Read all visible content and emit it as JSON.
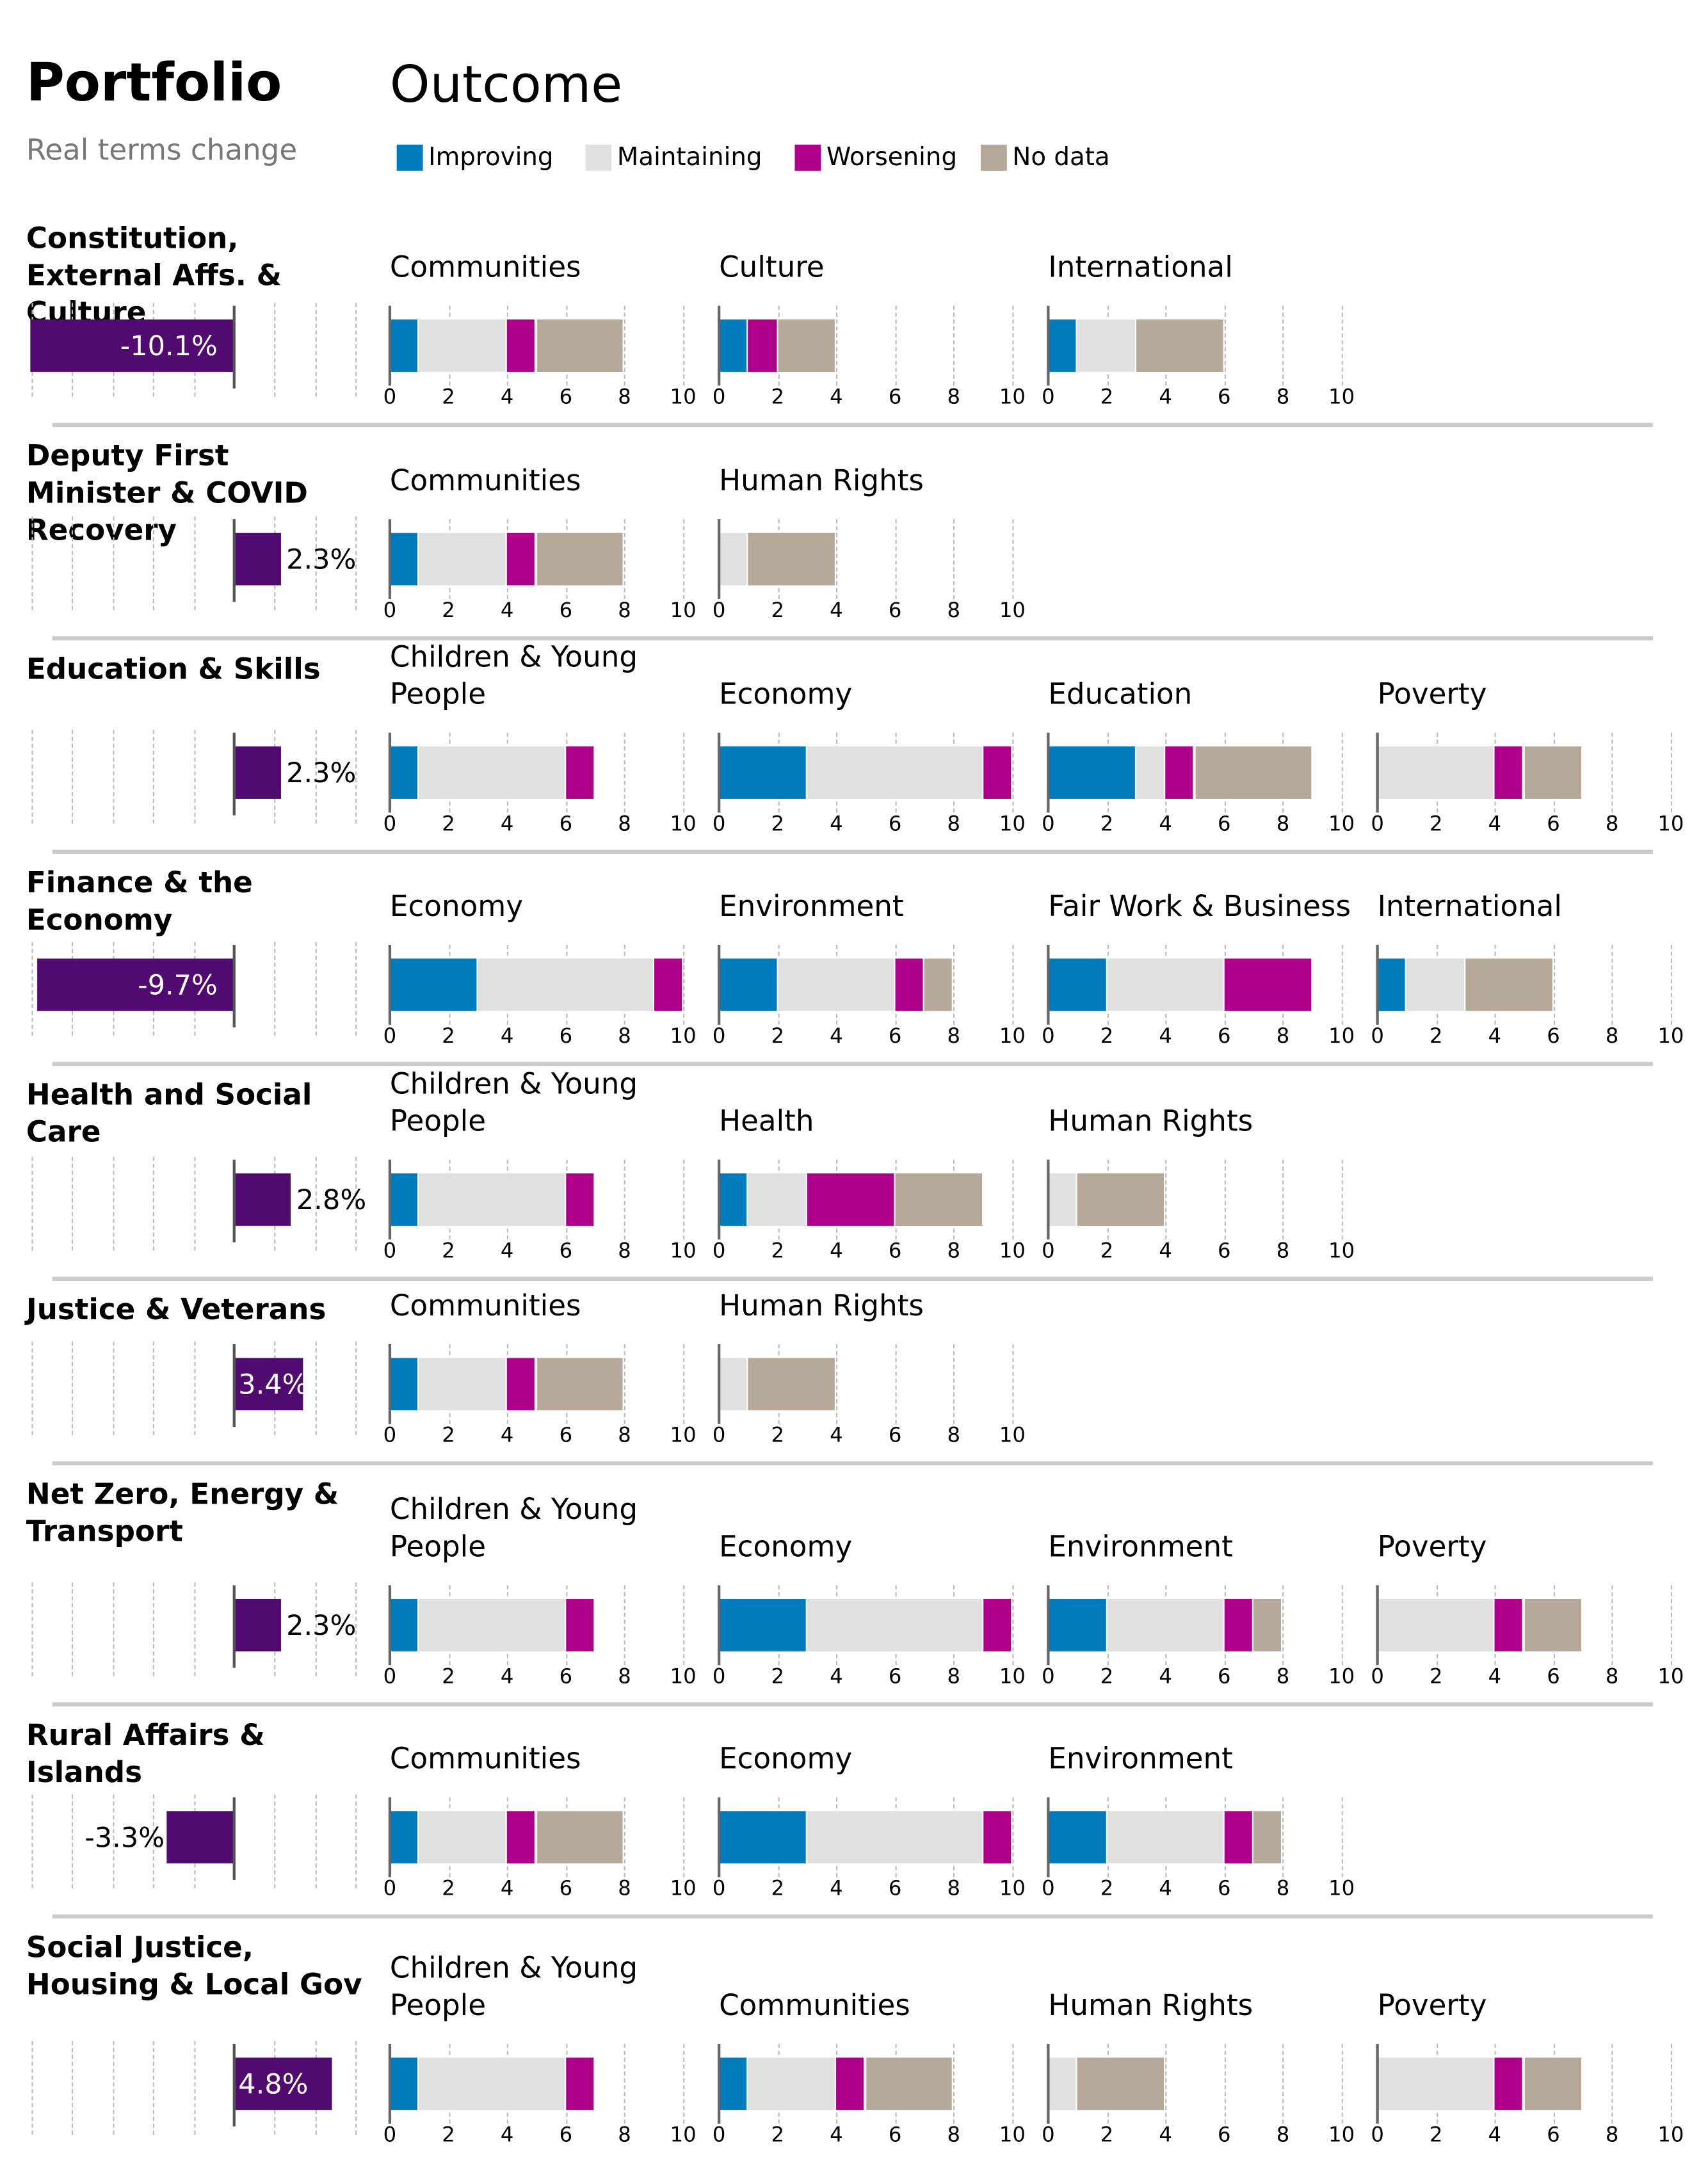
{
  "header": {
    "title": "Portfolio",
    "subtitle": "Real terms change",
    "outcome_title": "Outcome"
  },
  "legend": [
    {
      "label": "Improving",
      "color": "#007bbb"
    },
    {
      "label": "Maintaining",
      "color": "#e0e0e0"
    },
    {
      "label": "Worsening",
      "color": "#af008c"
    },
    {
      "label": "No data",
      "color": "#b6a999"
    }
  ],
  "chart_data": {
    "type": "bar",
    "stacked": true,
    "x_ticks": [
      "0",
      "2",
      "4",
      "6",
      "8",
      "10"
    ],
    "xlim": [
      0,
      10
    ],
    "portfolio_bar_color": "#500a70",
    "grid": true,
    "portfolios": [
      {
        "name": "Constitution, External Affs. & Culture",
        "change": -10.1,
        "change_label": "-10.1%",
        "outcomes": [
          {
            "name": "Communities",
            "values": [
              1,
              3,
              1,
              3
            ]
          },
          {
            "name": "Culture",
            "values": [
              1,
              0,
              1,
              2
            ]
          },
          {
            "name": "International",
            "values": [
              1,
              2,
              0,
              3
            ]
          }
        ]
      },
      {
        "name": "Deputy First Minister & COVID Recovery",
        "change": 2.3,
        "change_label": "2.3%",
        "outcomes": [
          {
            "name": "Communities",
            "values": [
              1,
              3,
              1,
              3
            ]
          },
          {
            "name": "Human Rights",
            "values": [
              0,
              1,
              0,
              3
            ]
          }
        ]
      },
      {
        "name": "Education & Skills",
        "change": 2.3,
        "change_label": "2.3%",
        "outcomes": [
          {
            "name": "Children & Young People",
            "values": [
              1,
              5,
              1,
              0
            ]
          },
          {
            "name": "Economy",
            "values": [
              3,
              6,
              1,
              0
            ]
          },
          {
            "name": "Education",
            "values": [
              3,
              1,
              1,
              4
            ]
          },
          {
            "name": "Poverty",
            "values": [
              0,
              4,
              1,
              2
            ]
          }
        ]
      },
      {
        "name": "Finance & the Economy",
        "change": -9.7,
        "change_label": "-9.7%",
        "outcomes": [
          {
            "name": "Economy",
            "values": [
              3,
              6,
              1,
              0
            ]
          },
          {
            "name": "Environment",
            "values": [
              2,
              4,
              1,
              1
            ]
          },
          {
            "name": "Fair Work & Business",
            "values": [
              2,
              4,
              3,
              0
            ]
          },
          {
            "name": "International",
            "values": [
              1,
              2,
              0,
              3
            ]
          }
        ]
      },
      {
        "name": "Health and Social Care",
        "change": 2.8,
        "change_label": "2.8%",
        "outcomes": [
          {
            "name": "Children & Young People",
            "values": [
              1,
              5,
              1,
              0
            ]
          },
          {
            "name": "Health",
            "values": [
              1,
              2,
              3,
              3
            ]
          },
          {
            "name": "Human Rights",
            "values": [
              0,
              1,
              0,
              3
            ]
          }
        ]
      },
      {
        "name": "Justice & Veterans",
        "change": 3.4,
        "change_label": "3.4%",
        "outcomes": [
          {
            "name": "Communities",
            "values": [
              1,
              3,
              1,
              3
            ]
          },
          {
            "name": "Human Rights",
            "values": [
              0,
              1,
              0,
              3
            ]
          }
        ]
      },
      {
        "name": "Net Zero, Energy & Transport",
        "change": 2.3,
        "change_label": "2.3%",
        "outcomes": [
          {
            "name": "Children & Young People",
            "values": [
              1,
              5,
              1,
              0
            ]
          },
          {
            "name": "Economy",
            "values": [
              3,
              6,
              1,
              0
            ]
          },
          {
            "name": "Environment",
            "values": [
              2,
              4,
              1,
              1
            ]
          },
          {
            "name": "Poverty",
            "values": [
              0,
              4,
              1,
              2
            ]
          }
        ]
      },
      {
        "name": "Rural Affairs & Islands",
        "change": -3.3,
        "change_label": "-3.3%",
        "outcomes": [
          {
            "name": "Communities",
            "values": [
              1,
              3,
              1,
              3
            ]
          },
          {
            "name": "Economy",
            "values": [
              3,
              6,
              1,
              0
            ]
          },
          {
            "name": "Environment",
            "values": [
              2,
              4,
              1,
              1
            ]
          }
        ]
      },
      {
        "name": "Social Justice, Housing & Local Gov",
        "change": 4.8,
        "change_label": "4.8%",
        "outcomes": [
          {
            "name": "Children & Young People",
            "values": [
              1,
              5,
              1,
              0
            ]
          },
          {
            "name": "Communities",
            "values": [
              1,
              3,
              1,
              3
            ]
          },
          {
            "name": "Human Rights",
            "values": [
              0,
              1,
              0,
              3
            ]
          },
          {
            "name": "Poverty",
            "values": [
              0,
              4,
              1,
              2
            ]
          }
        ]
      }
    ]
  }
}
